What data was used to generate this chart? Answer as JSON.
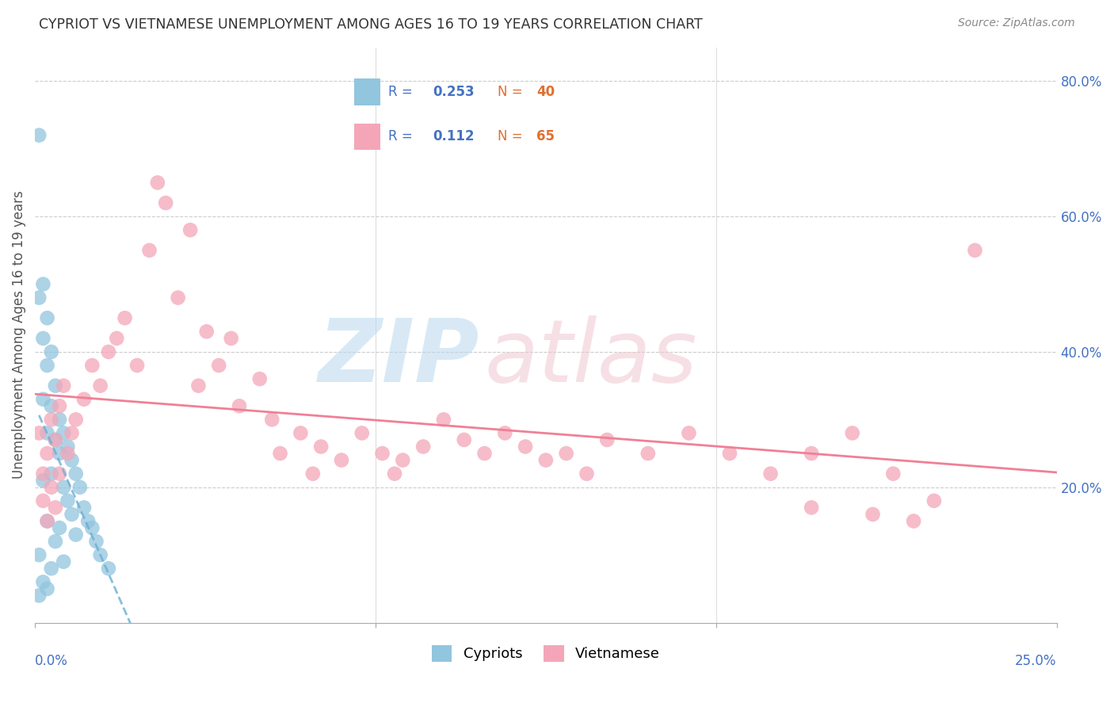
{
  "title": "CYPRIOT VS VIETNAMESE UNEMPLOYMENT AMONG AGES 16 TO 19 YEARS CORRELATION CHART",
  "source": "Source: ZipAtlas.com",
  "ylabel": "Unemployment Among Ages 16 to 19 years",
  "legend_blue_r": "0.253",
  "legend_blue_n": "40",
  "legend_pink_r": "0.112",
  "legend_pink_n": "65",
  "legend_label_blue": "Cypriots",
  "legend_label_pink": "Vietnamese",
  "color_blue": "#92c5de",
  "color_pink": "#f4a6b8",
  "color_blue_line": "#6baed6",
  "color_pink_line": "#f08096",
  "xlim": [
    0.0,
    0.25
  ],
  "ylim": [
    0.0,
    0.85
  ],
  "blue_x": [
    0.001,
    0.001,
    0.001,
    0.001,
    0.002,
    0.002,
    0.002,
    0.002,
    0.002,
    0.003,
    0.003,
    0.003,
    0.003,
    0.003,
    0.004,
    0.004,
    0.004,
    0.004,
    0.005,
    0.005,
    0.005,
    0.006,
    0.006,
    0.006,
    0.007,
    0.007,
    0.007,
    0.008,
    0.008,
    0.009,
    0.009,
    0.01,
    0.01,
    0.011,
    0.012,
    0.013,
    0.014,
    0.015,
    0.016,
    0.018
  ],
  "blue_y": [
    0.72,
    0.48,
    0.1,
    0.04,
    0.5,
    0.42,
    0.33,
    0.21,
    0.06,
    0.45,
    0.38,
    0.28,
    0.15,
    0.05,
    0.4,
    0.32,
    0.22,
    0.08,
    0.35,
    0.27,
    0.12,
    0.3,
    0.25,
    0.14,
    0.28,
    0.2,
    0.09,
    0.26,
    0.18,
    0.24,
    0.16,
    0.22,
    0.13,
    0.2,
    0.17,
    0.15,
    0.14,
    0.12,
    0.1,
    0.08
  ],
  "pink_x": [
    0.001,
    0.002,
    0.002,
    0.003,
    0.003,
    0.004,
    0.004,
    0.005,
    0.005,
    0.006,
    0.006,
    0.007,
    0.008,
    0.009,
    0.01,
    0.012,
    0.014,
    0.016,
    0.018,
    0.02,
    0.022,
    0.025,
    0.028,
    0.03,
    0.032,
    0.035,
    0.038,
    0.04,
    0.042,
    0.045,
    0.048,
    0.05,
    0.055,
    0.058,
    0.06,
    0.065,
    0.068,
    0.07,
    0.075,
    0.08,
    0.085,
    0.088,
    0.09,
    0.095,
    0.1,
    0.105,
    0.11,
    0.115,
    0.12,
    0.125,
    0.13,
    0.135,
    0.14,
    0.15,
    0.16,
    0.17,
    0.18,
    0.19,
    0.2,
    0.21,
    0.22,
    0.23,
    0.19,
    0.205,
    0.215
  ],
  "pink_y": [
    0.28,
    0.22,
    0.18,
    0.25,
    0.15,
    0.3,
    0.2,
    0.27,
    0.17,
    0.32,
    0.22,
    0.35,
    0.25,
    0.28,
    0.3,
    0.33,
    0.38,
    0.35,
    0.4,
    0.42,
    0.45,
    0.38,
    0.55,
    0.65,
    0.62,
    0.48,
    0.58,
    0.35,
    0.43,
    0.38,
    0.42,
    0.32,
    0.36,
    0.3,
    0.25,
    0.28,
    0.22,
    0.26,
    0.24,
    0.28,
    0.25,
    0.22,
    0.24,
    0.26,
    0.3,
    0.27,
    0.25,
    0.28,
    0.26,
    0.24,
    0.25,
    0.22,
    0.27,
    0.25,
    0.28,
    0.25,
    0.22,
    0.25,
    0.28,
    0.22,
    0.18,
    0.55,
    0.17,
    0.16,
    0.15
  ]
}
